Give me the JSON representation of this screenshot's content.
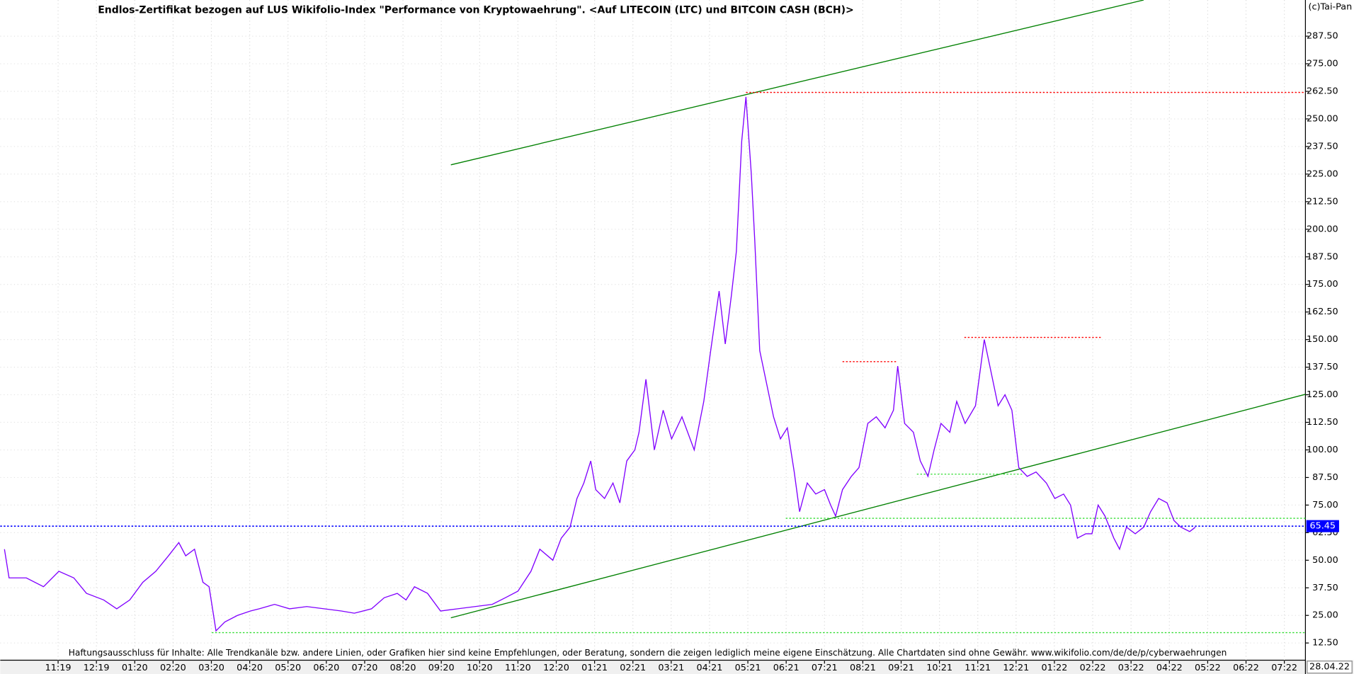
{
  "chart_data": {
    "type": "line",
    "title": "Endlos-Zertifikat bezogen auf LUS Wikifolio-Index \"Performance von Kryptowaehrung\". <Auf LITECOIN (LTC) und BITCOIN CASH (BCH)>",
    "copyright": "(c)Tai-Pan",
    "disclaimer": "Haftungsausschluss für Inhalte: Alle Trendkanäle bzw. andere Linien, oder Grafiken hier sind keine Empfehlungen, oder Beratung, sondern die zeigen lediglich meine eigene Einschätzung. Alle Chartdaten sind ohne Gewähr.  www.wikifolio.com/de/de/p/cyberwaehrungen",
    "last_date": "28.04.22",
    "last_value": 65.45,
    "last_value_color": "#0000ff",
    "grid": true,
    "xlim": [
      -1.51,
      32.55
    ],
    "ylim": [
      4.7,
      303.9
    ],
    "xticks": [
      {
        "value": 0,
        "label": "11:19"
      },
      {
        "value": 1,
        "label": "12:19"
      },
      {
        "value": 2,
        "label": "01:20"
      },
      {
        "value": 3,
        "label": "02:20"
      },
      {
        "value": 4,
        "label": "03:20"
      },
      {
        "value": 5,
        "label": "04:20"
      },
      {
        "value": 6,
        "label": "05:20"
      },
      {
        "value": 7,
        "label": "06:20"
      },
      {
        "value": 8,
        "label": "07:20"
      },
      {
        "value": 9,
        "label": "08:20"
      },
      {
        "value": 10,
        "label": "09:20"
      },
      {
        "value": 11,
        "label": "10:20"
      },
      {
        "value": 12,
        "label": "11:20"
      },
      {
        "value": 13,
        "label": "12:20"
      },
      {
        "value": 14,
        "label": "01:21"
      },
      {
        "value": 15,
        "label": "02:21"
      },
      {
        "value": 16,
        "label": "03:21"
      },
      {
        "value": 17,
        "label": "04:21"
      },
      {
        "value": 18,
        "label": "05:21"
      },
      {
        "value": 19,
        "label": "06:21"
      },
      {
        "value": 20,
        "label": "07:21"
      },
      {
        "value": 21,
        "label": "08:21"
      },
      {
        "value": 22,
        "label": "09:21"
      },
      {
        "value": 23,
        "label": "10:21"
      },
      {
        "value": 24,
        "label": "11:21"
      },
      {
        "value": 25,
        "label": "12:21"
      },
      {
        "value": 26,
        "label": "01:22"
      },
      {
        "value": 27,
        "label": "02:22"
      },
      {
        "value": 28,
        "label": "03:22"
      },
      {
        "value": 29,
        "label": "04:22"
      },
      {
        "value": 30,
        "label": "05:22"
      },
      {
        "value": 31,
        "label": "06:22"
      },
      {
        "value": 32,
        "label": "07:22"
      }
    ],
    "yticks": [
      {
        "value": 12.5,
        "label": "12.50"
      },
      {
        "value": 25,
        "label": "25.00"
      },
      {
        "value": 37.5,
        "label": "37.50"
      },
      {
        "value": 50,
        "label": "50.00"
      },
      {
        "value": 62.5,
        "label": "62.50"
      },
      {
        "value": 75,
        "label": "75.00"
      },
      {
        "value": 87.5,
        "label": "87.50"
      },
      {
        "value": 100,
        "label": "100.00"
      },
      {
        "value": 112.5,
        "label": "112.50"
      },
      {
        "value": 125,
        "label": "125.00"
      },
      {
        "value": 137.5,
        "label": "137.50"
      },
      {
        "value": 150,
        "label": "150.00"
      },
      {
        "value": 162.5,
        "label": "162.50"
      },
      {
        "value": 175,
        "label": "175.00"
      },
      {
        "value": 187.5,
        "label": "187.50"
      },
      {
        "value": 200,
        "label": "200.00"
      },
      {
        "value": 212.5,
        "label": "212.50"
      },
      {
        "value": 225,
        "label": "225.00"
      },
      {
        "value": 237.5,
        "label": "237.50"
      },
      {
        "value": 250,
        "label": "250.00"
      },
      {
        "value": 262.5,
        "label": "262.50"
      },
      {
        "value": 275,
        "label": "275.00"
      },
      {
        "value": 287.5,
        "label": "287.50"
      }
    ],
    "series": [
      {
        "color": "#8000ff",
        "x": [
          -1.4,
          -1.28,
          -0.83,
          -0.38,
          0.02,
          0.41,
          0.74,
          1.19,
          1.53,
          1.87,
          2.21,
          2.55,
          2.88,
          3.15,
          3.33,
          3.56,
          3.78,
          3.94,
          4.12,
          4.35,
          4.68,
          5.02,
          5.25,
          5.65,
          6.04,
          6.49,
          6.94,
          7.39,
          7.73,
          8.18,
          8.51,
          8.85,
          9.08,
          9.3,
          9.64,
          9.98,
          10.43,
          10.88,
          11.33,
          11.67,
          12.0,
          12.34,
          12.57,
          12.91,
          13.13,
          13.36,
          13.54,
          13.72,
          13.9,
          14.03,
          14.26,
          14.48,
          14.66,
          14.84,
          15.05,
          15.16,
          15.34,
          15.56,
          15.79,
          16.01,
          16.28,
          16.6,
          16.85,
          17.03,
          17.25,
          17.41,
          17.57,
          17.7,
          17.84,
          17.95,
          18.09,
          18.18,
          18.31,
          18.49,
          18.67,
          18.85,
          19.03,
          19.21,
          19.35,
          19.55,
          19.77,
          20.0,
          20.16,
          20.29,
          20.47,
          20.7,
          20.9,
          21.13,
          21.35,
          21.58,
          21.8,
          21.91,
          22.09,
          22.32,
          22.5,
          22.7,
          22.86,
          23.04,
          23.27,
          23.45,
          23.67,
          23.94,
          24.17,
          24.35,
          24.53,
          24.71,
          24.89,
          25.07,
          25.29,
          25.52,
          25.79,
          26.01,
          26.24,
          26.42,
          26.6,
          26.82,
          26.98,
          27.14,
          27.32,
          27.55,
          27.7,
          27.88,
          28.11,
          28.33,
          28.51,
          28.72,
          28.94,
          29.12,
          29.3,
          29.53,
          29.68
        ],
        "values": [
          55,
          42,
          42,
          38,
          45,
          42,
          35,
          32,
          28,
          32,
          40,
          45,
          52,
          58,
          52,
          55,
          40,
          38,
          18,
          22,
          25,
          27,
          28,
          30,
          28,
          29,
          28,
          27,
          26,
          28,
          33,
          35,
          32,
          38,
          35,
          27,
          28,
          29,
          30,
          33,
          36,
          45,
          55,
          50,
          60,
          65,
          78,
          85,
          95,
          82,
          78,
          85,
          76,
          95,
          100,
          108,
          132,
          100,
          118,
          105,
          115,
          100,
          122,
          145,
          172,
          148,
          170,
          190,
          240,
          260,
          225,
          195,
          145,
          130,
          115,
          105,
          110,
          90,
          72,
          85,
          80,
          82,
          75,
          70,
          82,
          88,
          92,
          112,
          115,
          110,
          118,
          138,
          112,
          108,
          95,
          88,
          100,
          112,
          108,
          122,
          112,
          120,
          150,
          135,
          120,
          125,
          118,
          92,
          88,
          90,
          85,
          78,
          80,
          75,
          60,
          62,
          62,
          75,
          70,
          60,
          55,
          65,
          62,
          65,
          72,
          78,
          76,
          68,
          65,
          63,
          65
        ]
      }
    ],
    "lines": [
      {
        "x1": 10.25,
        "y1": 229.2,
        "x2": 28.33,
        "y2": 303.9,
        "color": "#008000",
        "style": "solid"
      },
      {
        "x1": 10.25,
        "y1": 23.9,
        "x2": 32.55,
        "y2": 125.2,
        "color": "#008000",
        "style": "solid"
      },
      {
        "x1": 17.95,
        "y1": 262,
        "x2": 32.55,
        "y2": 262,
        "color": "#ff0000",
        "style": "dotted"
      },
      {
        "x1": 20.47,
        "y1": 140,
        "x2": 21.91,
        "y2": 140,
        "color": "#ff0000",
        "style": "dotted"
      },
      {
        "x1": 23.65,
        "y1": 151,
        "x2": 27.23,
        "y2": 151,
        "color": "#ff0000",
        "style": "dotted"
      },
      {
        "x1": 22.41,
        "y1": 89,
        "x2": 25.18,
        "y2": 89,
        "color": "#33dd33",
        "style": "dotted"
      },
      {
        "x1": 18.99,
        "y1": 69,
        "x2": 32.55,
        "y2": 69,
        "color": "#33dd33",
        "style": "dotted"
      },
      {
        "x1": 4.01,
        "y1": 17.2,
        "x2": 32.55,
        "y2": 17.2,
        "color": "#33dd33",
        "style": "dotted"
      }
    ]
  }
}
